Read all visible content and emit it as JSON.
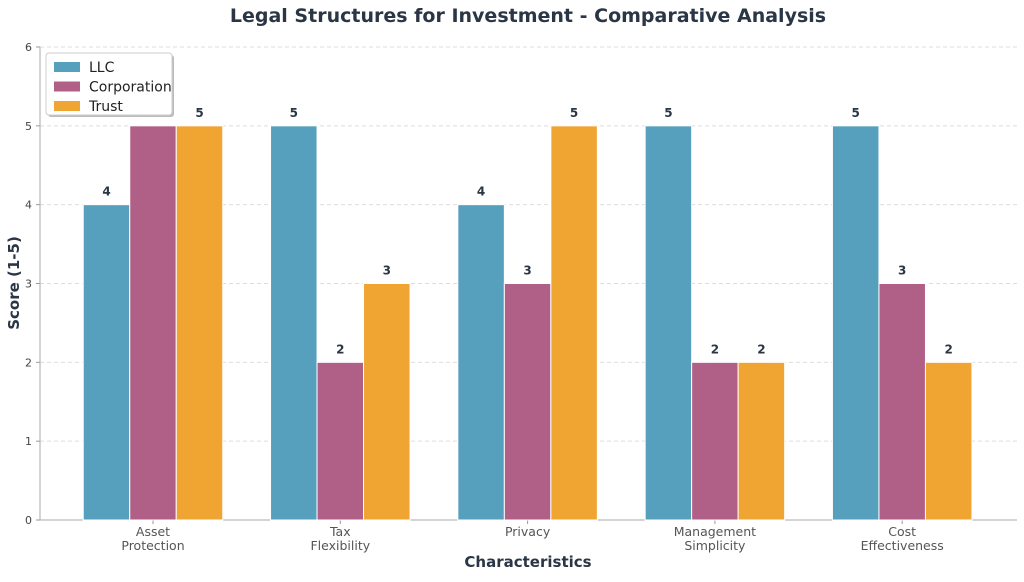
{
  "chart_data": {
    "type": "bar",
    "title": "Legal Structures for Investment - Comparative Analysis",
    "xlabel": "Characteristics",
    "ylabel": "Score (1-5)",
    "ylim": [
      0,
      6
    ],
    "yticks": [
      0,
      1,
      2,
      3,
      4,
      5,
      6
    ],
    "grid": true,
    "legend_position": "top-left",
    "categories": [
      [
        "Asset",
        "Protection"
      ],
      [
        "Tax",
        "Flexibility"
      ],
      [
        "Privacy"
      ],
      [
        "Management",
        "Simplicity"
      ],
      [
        "Cost",
        "Effectiveness"
      ]
    ],
    "series": [
      {
        "name": "LLC",
        "values": [
          4,
          5,
          4,
          5,
          5
        ],
        "color": "#569fbd"
      },
      {
        "name": "Corporation",
        "values": [
          5,
          2,
          3,
          2,
          3
        ],
        "color": "#b05f87"
      },
      {
        "name": "Trust",
        "values": [
          5,
          3,
          5,
          2,
          2
        ],
        "color": "#f0a431"
      }
    ]
  }
}
